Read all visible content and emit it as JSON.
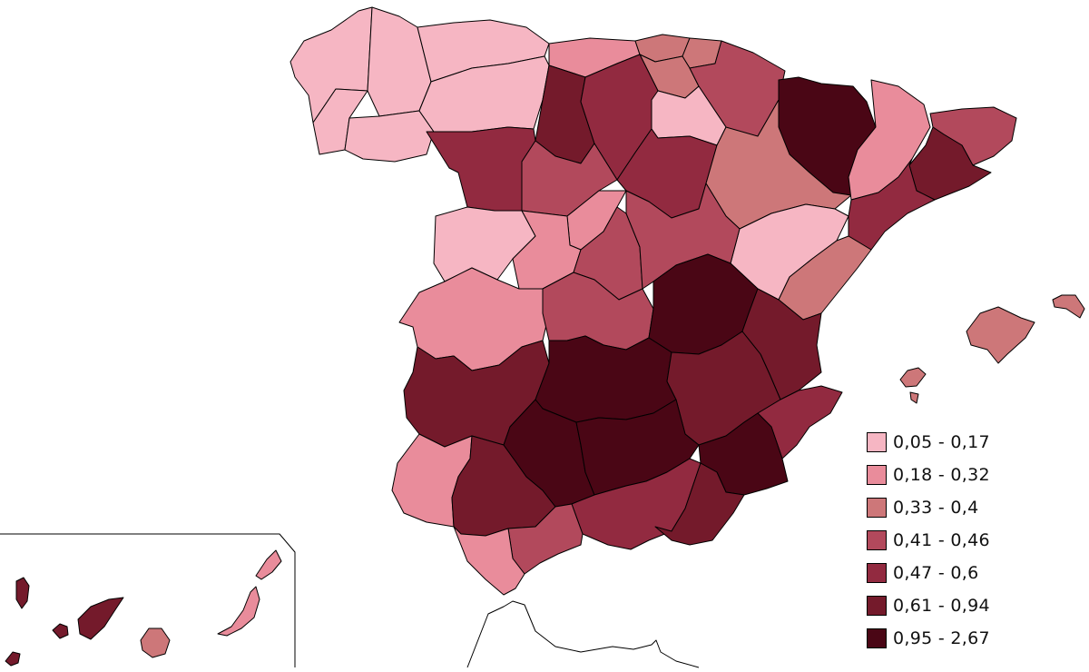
{
  "palette": {
    "c1": "#f6b6c3",
    "c2": "#e98c9b",
    "c3": "#cd7779",
    "c4": "#b2495c",
    "c5": "#922a40",
    "c6": "#741a2b",
    "c7": "#4a0615"
  },
  "legend": [
    {
      "label": "0,05 - 0,17",
      "color": "#f6b6c3"
    },
    {
      "label": "0,18 - 0,32",
      "color": "#e98c9b"
    },
    {
      "label": "0,33 - 0,4",
      "color": "#cd7779"
    },
    {
      "label": "0,41 - 0,46",
      "color": "#b2495c"
    },
    {
      "label": "0,47 - 0,6",
      "color": "#922a40"
    },
    {
      "label": "0,61 - 0,94",
      "color": "#741a2b"
    },
    {
      "label": "0,95 - 2,67",
      "color": "#4a0615"
    }
  ]
}
